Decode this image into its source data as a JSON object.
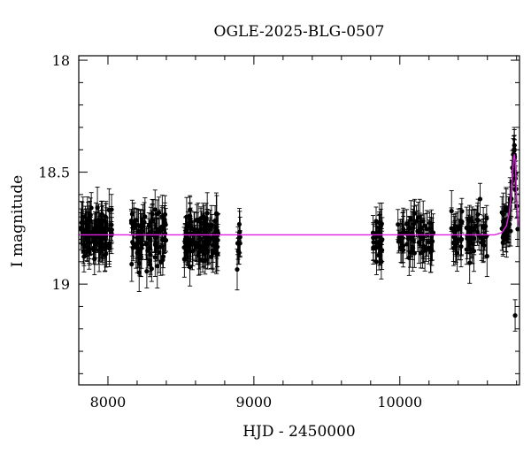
{
  "chart_data": {
    "type": "scatter",
    "title": "OGLE-2025-BLG-0507",
    "xlabel": "HJD - 2450000",
    "ylabel": "I magnitude",
    "xlim": [
      7800,
      10820
    ],
    "ylim": [
      19.45,
      17.98
    ],
    "y_inverted": true,
    "x_ticks": [
      8000,
      9000,
      10000
    ],
    "y_ticks": [
      18,
      18.5,
      19
    ],
    "x_tick_labels": [
      "8000",
      "9000",
      "10000"
    ],
    "y_tick_labels": [
      "18",
      "18.5",
      "19"
    ],
    "grid": false,
    "baseline_mag": 18.78,
    "typical_error": 0.07,
    "seasons": [
      {
        "start": 7810,
        "end": 8030,
        "n": 110,
        "center": 18.78,
        "scatter": 0.05
      },
      {
        "start": 8160,
        "end": 8400,
        "n": 95,
        "center": 18.79,
        "scatter": 0.06
      },
      {
        "start": 8520,
        "end": 8760,
        "n": 110,
        "center": 18.79,
        "scatter": 0.05
      },
      {
        "start": 8880,
        "end": 8910,
        "n": 10,
        "center": 18.79,
        "scatter": 0.06
      },
      {
        "start": 9810,
        "end": 9880,
        "n": 30,
        "center": 18.81,
        "scatter": 0.05
      },
      {
        "start": 9980,
        "end": 10230,
        "n": 75,
        "center": 18.78,
        "scatter": 0.05
      },
      {
        "start": 10350,
        "end": 10600,
        "n": 70,
        "center": 18.78,
        "scatter": 0.05
      },
      {
        "start": 10700,
        "end": 10812,
        "n": 45,
        "center": 18.72,
        "scatter": 0.05
      }
    ],
    "outliers": [
      {
        "x": 10790,
        "y": 19.14
      },
      {
        "x": 10785,
        "y": 18.38
      },
      {
        "x": 10778,
        "y": 18.42
      },
      {
        "x": 10700,
        "y": 18.68
      },
      {
        "x": 10550,
        "y": 18.62
      }
    ],
    "series": [
      {
        "kind": "model",
        "color": "#e020e0",
        "x": [
          7800,
          10650,
          10700,
          10730,
          10750,
          10760,
          10770,
          10778,
          10785,
          10790,
          10795,
          10800,
          10805,
          10812,
          10820
        ],
        "y": [
          18.78,
          18.78,
          18.77,
          18.74,
          18.68,
          18.62,
          18.53,
          18.45,
          18.42,
          18.45,
          18.52,
          18.6,
          18.66,
          18.72,
          18.75
        ]
      }
    ]
  }
}
